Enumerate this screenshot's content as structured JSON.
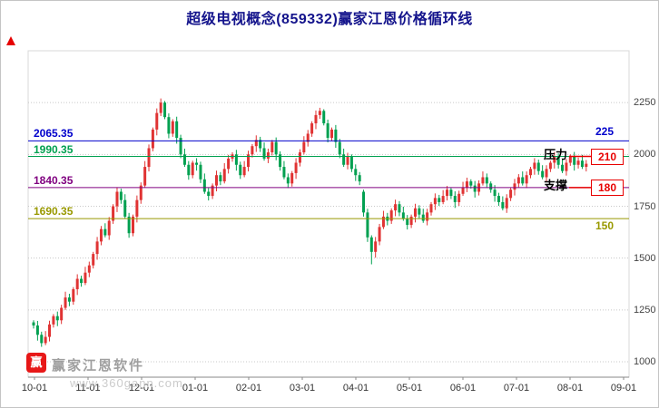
{
  "watermark": {
    "logo_text": "赢",
    "brand": "赢家江恩软件",
    "url": "www.360gann.com"
  },
  "chart_data": {
    "type": "candlestick",
    "title": "超级电视概念(859332)赢家江恩价格循环线",
    "x_labels": [
      "10-01",
      "11-01",
      "12-01",
      "01-01",
      "02-01",
      "03-01",
      "04-01",
      "05-01",
      "06-01",
      "07-01",
      "08-01",
      "09-01"
    ],
    "y_ticks": [
      2250,
      2000,
      1750,
      1500,
      1250,
      1000
    ],
    "ylim": [
      1000,
      2500
    ],
    "legend": "none",
    "grid": "horizontal-dotted",
    "gann_lines": [
      {
        "price": 2065.35,
        "label": "2065.35",
        "right_value": "225",
        "color": "#0000cc",
        "boxed": false,
        "tag": "",
        "value_side": "above"
      },
      {
        "price": 1990.35,
        "label": "1990.35",
        "right_value": "210",
        "color": "#00a050",
        "boxed": true,
        "tag": "压力",
        "value_side": "center"
      },
      {
        "price": 1840.35,
        "label": "1840.35",
        "right_value": "180",
        "color": "#800080",
        "boxed": true,
        "tag": "支撑",
        "value_side": "center"
      },
      {
        "price": 1690.35,
        "label": "1690.35",
        "right_value": "150",
        "color": "#999900",
        "boxed": false,
        "tag": "",
        "value_side": "below"
      }
    ],
    "colors": {
      "up": "#e03333",
      "down": "#00a050",
      "grid": "#c8c8c8",
      "axis_text": "#444444",
      "annotation": "#e80000",
      "title": "#14148c",
      "axis_line": "#888888",
      "plot_border": "#d8d8d8"
    },
    "candles": [
      [
        1190,
        1200,
        1160,
        1175
      ],
      [
        1175,
        1197,
        1102,
        1130
      ],
      [
        1130,
        1145,
        1072,
        1090
      ],
      [
        1090,
        1148,
        1080,
        1120
      ],
      [
        1120,
        1198,
        1098,
        1180
      ],
      [
        1180,
        1230,
        1165,
        1220
      ],
      [
        1220,
        1242,
        1172,
        1200
      ],
      [
        1200,
        1275,
        1182,
        1260
      ],
      [
        1260,
        1338,
        1250,
        1310
      ],
      [
        1310,
        1328,
        1268,
        1290
      ],
      [
        1290,
        1360,
        1275,
        1350
      ],
      [
        1350,
        1422,
        1322,
        1400
      ],
      [
        1400,
        1415,
        1362,
        1380
      ],
      [
        1380,
        1458,
        1370,
        1430
      ],
      [
        1430,
        1483,
        1408,
        1465
      ],
      [
        1465,
        1530,
        1450,
        1520
      ],
      [
        1520,
        1602,
        1492,
        1580
      ],
      [
        1580,
        1655,
        1562,
        1640
      ],
      [
        1640,
        1668,
        1600,
        1610
      ],
      [
        1610,
        1698,
        1588,
        1680
      ],
      [
        1680,
        1760,
        1665,
        1750
      ],
      [
        1750,
        1842,
        1722,
        1820
      ],
      [
        1820,
        1835,
        1762,
        1780
      ],
      [
        1780,
        1808,
        1690,
        1700
      ],
      [
        1700,
        1718,
        1598,
        1620
      ],
      [
        1620,
        1710,
        1605,
        1700
      ],
      [
        1700,
        1802,
        1672,
        1780
      ],
      [
        1780,
        1865,
        1762,
        1850
      ],
      [
        1850,
        1968,
        1840,
        1940
      ],
      [
        1940,
        2048,
        1918,
        2030
      ],
      [
        2030,
        2130,
        2015,
        2120
      ],
      [
        2120,
        2222,
        2092,
        2200
      ],
      [
        2200,
        2270,
        2185,
        2250
      ],
      [
        2250,
        2258,
        2170,
        2180
      ],
      [
        2180,
        2198,
        2078,
        2100
      ],
      [
        2100,
        2170,
        2085,
        2160
      ],
      [
        2160,
        2182,
        2052,
        2080
      ],
      [
        2080,
        2095,
        1982,
        2000
      ],
      [
        2000,
        2028,
        1940,
        1950
      ],
      [
        1950,
        1968,
        1878,
        1900
      ],
      [
        1900,
        1970,
        1885,
        1960
      ],
      [
        1960,
        1982,
        1922,
        1950
      ],
      [
        1950,
        1965,
        1862,
        1880
      ],
      [
        1880,
        1908,
        1810,
        1820
      ],
      [
        1820,
        1838,
        1778,
        1800
      ],
      [
        1800,
        1860,
        1785,
        1850
      ],
      [
        1850,
        1922,
        1822,
        1900
      ],
      [
        1900,
        1915,
        1852,
        1870
      ],
      [
        1870,
        1958,
        1860,
        1930
      ],
      [
        1930,
        1998,
        1908,
        1980
      ],
      [
        1980,
        2010,
        1965,
        2000
      ],
      [
        2000,
        2022,
        1922,
        1950
      ],
      [
        1950,
        1965,
        1882,
        1900
      ],
      [
        1900,
        1968,
        1890,
        1940
      ],
      [
        1940,
        2018,
        1918,
        2000
      ],
      [
        2000,
        2050,
        1985,
        2040
      ],
      [
        2040,
        2092,
        2012,
        2070
      ],
      [
        2070,
        2085,
        2012,
        2030
      ],
      [
        2030,
        2058,
        1970,
        1980
      ],
      [
        1980,
        2028,
        1958,
        2010
      ],
      [
        2010,
        2070,
        1995,
        2060
      ],
      [
        2060,
        2082,
        1972,
        2000
      ],
      [
        2000,
        2015,
        1922,
        1940
      ],
      [
        1940,
        1968,
        1880,
        1890
      ],
      [
        1890,
        1908,
        1838,
        1860
      ],
      [
        1860,
        1920,
        1845,
        1910
      ],
      [
        1910,
        1982,
        1882,
        1960
      ],
      [
        1960,
        2025,
        1942,
        2010
      ],
      [
        2010,
        2088,
        2000,
        2060
      ],
      [
        2060,
        2118,
        2038,
        2100
      ],
      [
        2100,
        2160,
        2085,
        2150
      ],
      [
        2150,
        2212,
        2122,
        2190
      ],
      [
        2190,
        2225,
        2172,
        2210
      ],
      [
        2210,
        2218,
        2140,
        2150
      ],
      [
        2150,
        2168,
        2058,
        2080
      ],
      [
        2080,
        2130,
        2065,
        2120
      ],
      [
        2120,
        2142,
        2032,
        2060
      ],
      [
        2060,
        2075,
        1982,
        2000
      ],
      [
        2000,
        2028,
        1940,
        1950
      ],
      [
        1950,
        2008,
        1928,
        1990
      ],
      [
        1990,
        2000,
        1915,
        1930
      ],
      [
        1930,
        1952,
        1872,
        1900
      ],
      [
        1900,
        1915,
        1852,
        1870
      ],
      [
        1820,
        1830,
        1700,
        1720
      ],
      [
        1720,
        1738,
        1578,
        1600
      ],
      [
        1600,
        1610,
        1470,
        1530
      ],
      [
        1530,
        1602,
        1502,
        1580
      ],
      [
        1580,
        1665,
        1562,
        1650
      ],
      [
        1650,
        1728,
        1640,
        1700
      ],
      [
        1700,
        1718,
        1658,
        1680
      ],
      [
        1680,
        1740,
        1665,
        1730
      ],
      [
        1730,
        1782,
        1702,
        1760
      ],
      [
        1760,
        1775,
        1702,
        1720
      ],
      [
        1720,
        1748,
        1680,
        1690
      ],
      [
        1690,
        1708,
        1638,
        1660
      ],
      [
        1660,
        1710,
        1645,
        1700
      ],
      [
        1700,
        1762,
        1672,
        1740
      ],
      [
        1740,
        1755,
        1692,
        1710
      ],
      [
        1710,
        1738,
        1670,
        1680
      ],
      [
        1680,
        1738,
        1658,
        1720
      ],
      [
        1720,
        1770,
        1705,
        1760
      ],
      [
        1760,
        1812,
        1732,
        1790
      ],
      [
        1790,
        1805,
        1752,
        1770
      ],
      [
        1770,
        1828,
        1760,
        1800
      ],
      [
        1800,
        1848,
        1778,
        1830
      ],
      [
        1830,
        1840,
        1785,
        1800
      ],
      [
        1800,
        1822,
        1742,
        1770
      ],
      [
        1770,
        1825,
        1752,
        1810
      ],
      [
        1810,
        1868,
        1800,
        1840
      ],
      [
        1840,
        1888,
        1818,
        1870
      ],
      [
        1870,
        1880,
        1835,
        1850
      ],
      [
        1850,
        1872,
        1792,
        1820
      ],
      [
        1820,
        1875,
        1802,
        1860
      ],
      [
        1860,
        1918,
        1850,
        1890
      ],
      [
        1890,
        1908,
        1838,
        1860
      ],
      [
        1860,
        1870,
        1815,
        1830
      ],
      [
        1830,
        1852,
        1772,
        1800
      ],
      [
        1800,
        1815,
        1752,
        1770
      ],
      [
        1770,
        1798,
        1730,
        1740
      ],
      [
        1740,
        1808,
        1718,
        1790
      ],
      [
        1790,
        1840,
        1775,
        1830
      ],
      [
        1830,
        1882,
        1802,
        1860
      ],
      [
        1860,
        1905,
        1842,
        1890
      ],
      [
        1890,
        1918,
        1850,
        1860
      ],
      [
        1860,
        1918,
        1838,
        1900
      ],
      [
        1900,
        1940,
        1885,
        1930
      ],
      [
        1930,
        1982,
        1902,
        1960
      ],
      [
        1960,
        1975,
        1902,
        1920
      ],
      [
        1920,
        1948,
        1880,
        1890
      ],
      [
        1890,
        1948,
        1868,
        1930
      ],
      [
        1930,
        1970,
        1915,
        1960
      ],
      [
        1960,
        2012,
        1932,
        1990
      ],
      [
        1990,
        2005,
        1932,
        1950
      ],
      [
        1950,
        1978,
        1910,
        1920
      ],
      [
        1920,
        1978,
        1898,
        1960
      ],
      [
        1960,
        2000,
        1945,
        1990
      ],
      [
        1990,
        2012,
        1922,
        1950
      ],
      [
        1950,
        1985,
        1932,
        1970
      ],
      [
        1970,
        1998,
        1930,
        1940
      ],
      [
        1940,
        1973,
        1918,
        1955
      ]
    ]
  }
}
